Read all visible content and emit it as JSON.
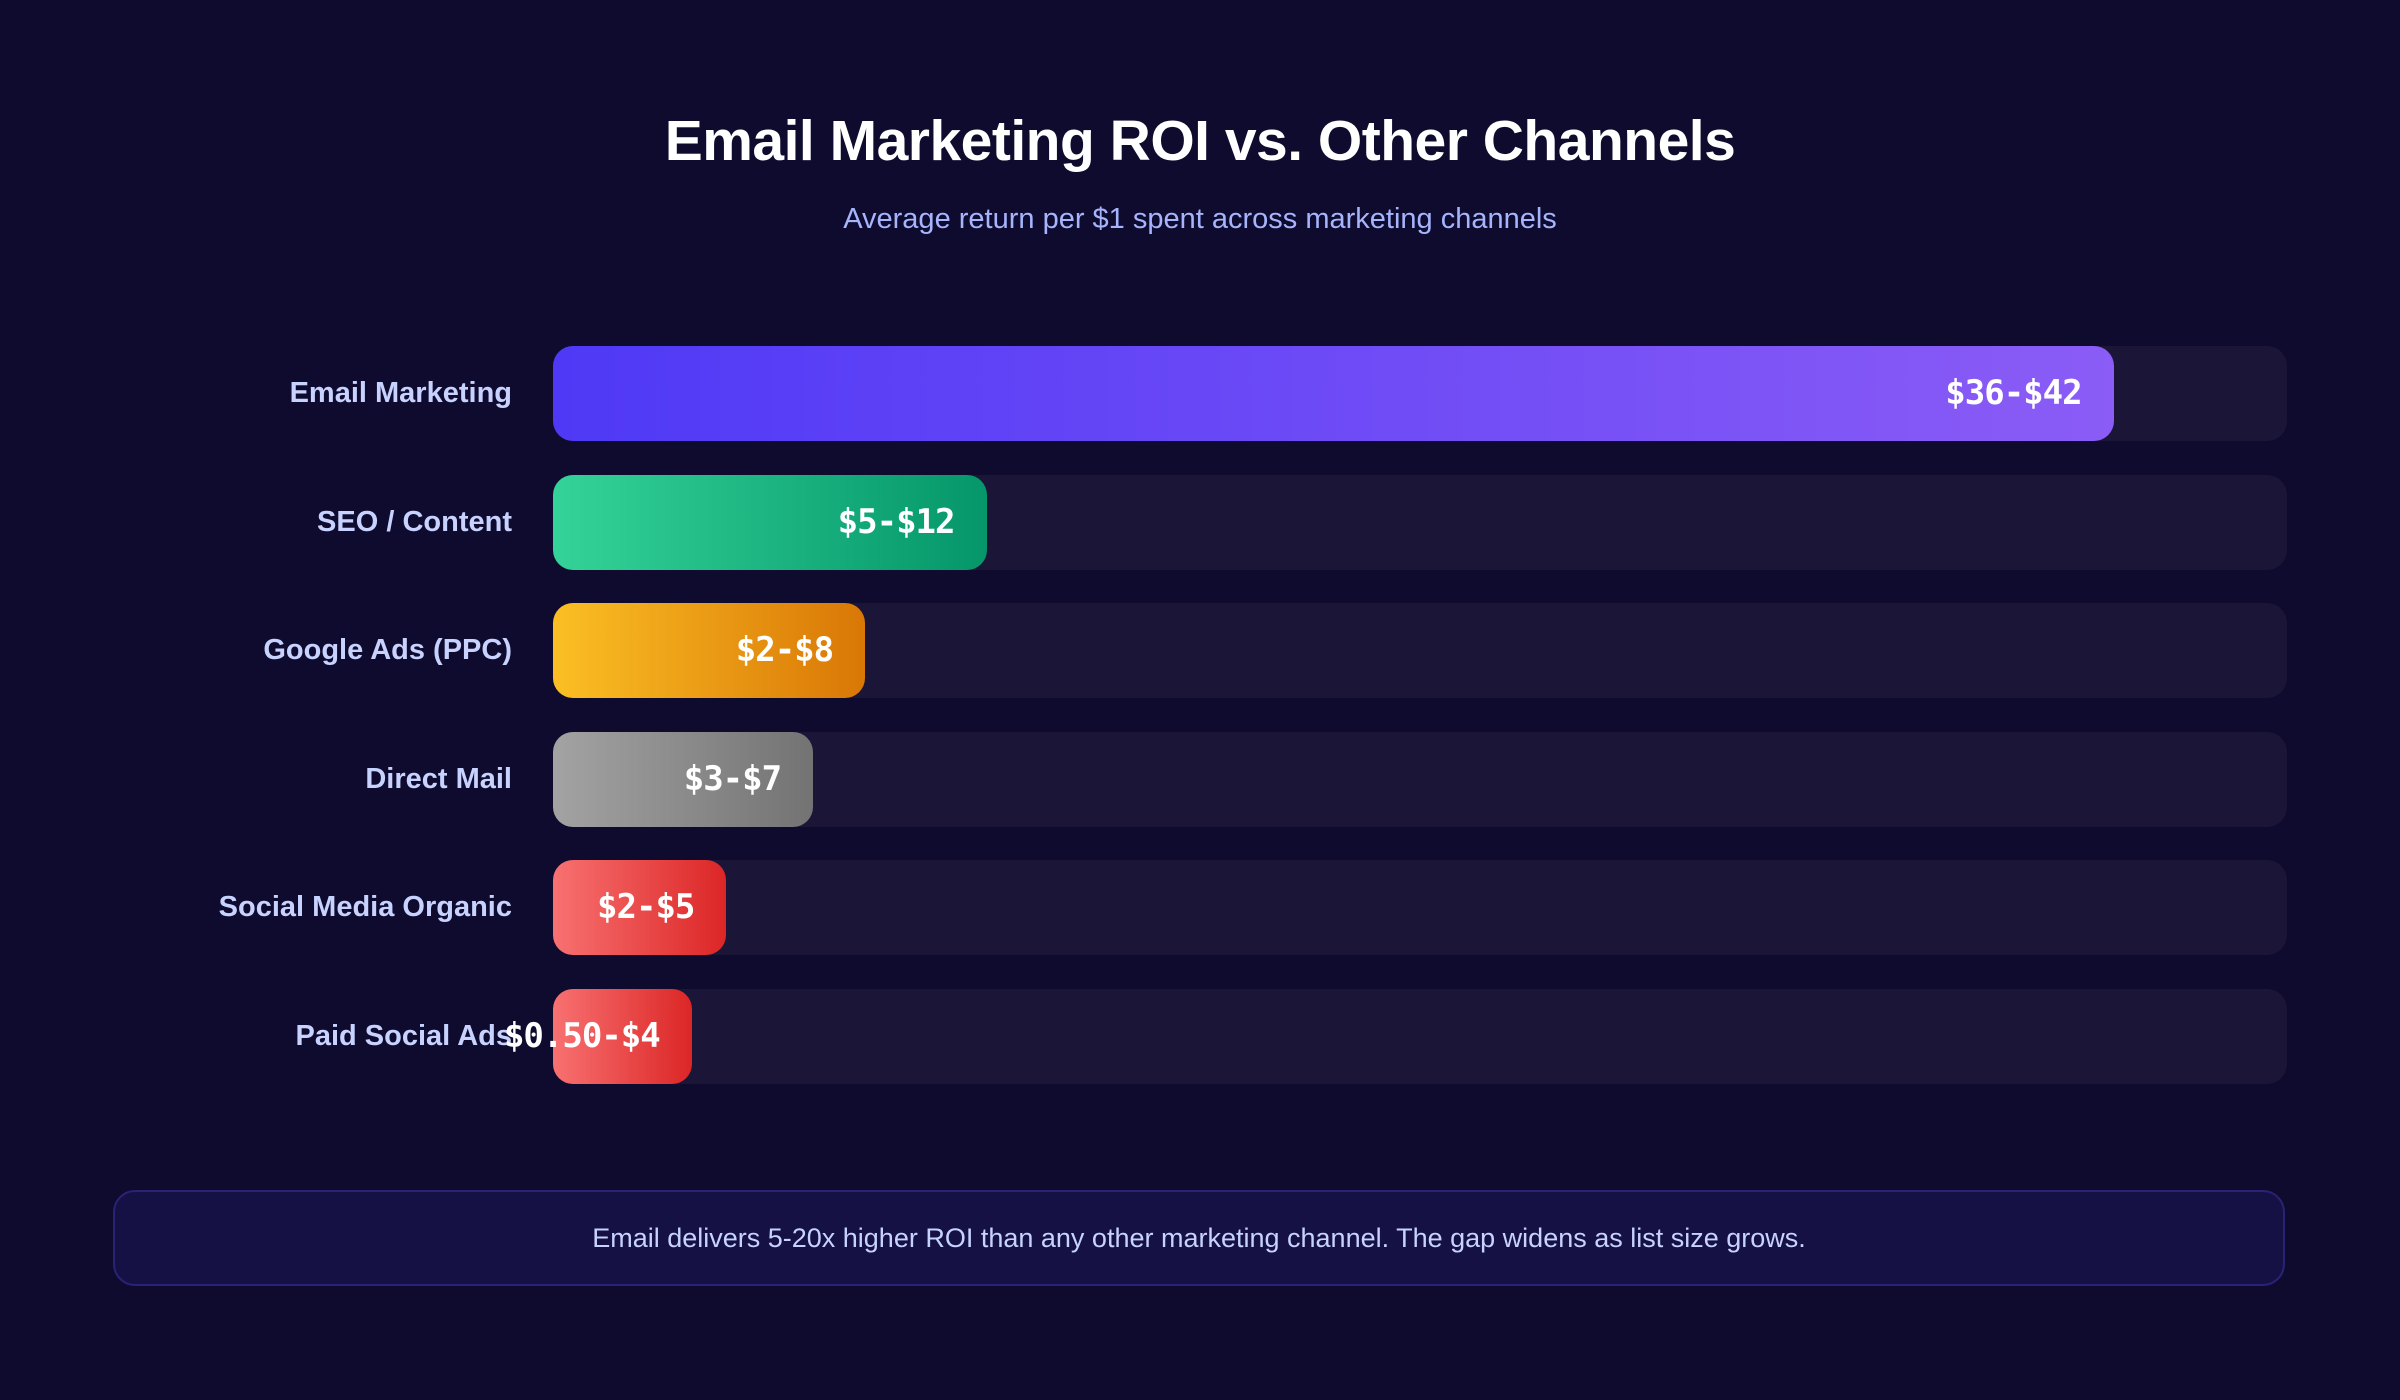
{
  "chart_data": {
    "type": "bar",
    "orientation": "horizontal",
    "title": "Email Marketing ROI vs. Other Channels",
    "subtitle": "Average return per $1 spent across marketing channels",
    "categories": [
      "Email Marketing",
      "SEO / Content",
      "Google Ads (PPC)",
      "Direct Mail",
      "Social Media Organic",
      "Paid Social Ads"
    ],
    "value_labels": [
      "$36-$42",
      "$5-$12",
      "$2-$8",
      "$3-$7",
      "$2-$5",
      "$0.50-$4"
    ],
    "fill_pct": [
      90,
      25,
      18,
      15,
      10,
      8
    ],
    "colors": [
      [
        "#4f39f6",
        "#8b5cf6"
      ],
      [
        "#34d399",
        "#059669"
      ],
      [
        "#fbbf24",
        "#d97706"
      ],
      [
        "#a3a3a3",
        "#737373"
      ],
      [
        "#f87171",
        "#dc2626"
      ],
      [
        "#f87171",
        "#dc2626"
      ]
    ],
    "grid": false,
    "legend": "none"
  },
  "footer": {
    "note": "Email delivers 5-20x higher ROI than any other marketing channel. The gap widens as list size grows."
  }
}
